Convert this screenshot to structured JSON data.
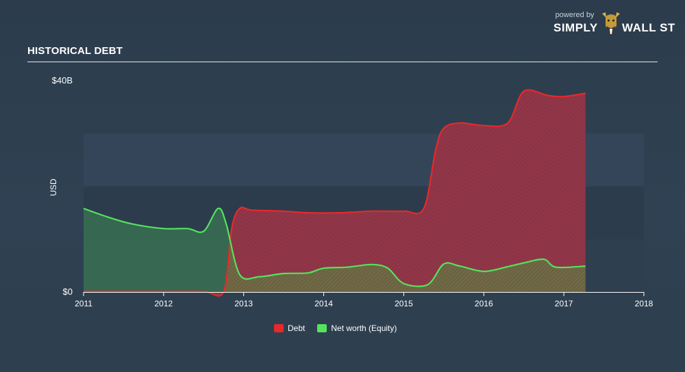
{
  "header": {
    "title": "HISTORICAL DEBT"
  },
  "brand": {
    "powered": "powered by",
    "left": "SIMPLY",
    "right": "WALL ST"
  },
  "colors": {
    "debt": "#e8282b",
    "equity": "#54e35d",
    "background": "#2f4152"
  },
  "chart_data": {
    "type": "area",
    "title": "HISTORICAL DEBT",
    "ylabel": "USD",
    "xlabel": "",
    "xlim": [
      2011,
      2018
    ],
    "ylim": [
      0,
      40
    ],
    "y_unit": "billion USD",
    "y_ticks": [
      {
        "value": 0,
        "label": "$0"
      },
      {
        "value": 40,
        "label": "$40B"
      }
    ],
    "x_ticks": [
      "2011",
      "2012",
      "2013",
      "2014",
      "2015",
      "2016",
      "2017",
      "2018"
    ],
    "legend_position": "bottom-center",
    "series": [
      {
        "name": "Debt",
        "color": "#e8282b",
        "points": [
          [
            2011.0,
            0.1
          ],
          [
            2011.5,
            0.1
          ],
          [
            2012.0,
            0.1
          ],
          [
            2012.5,
            0.1
          ],
          [
            2012.75,
            0.1
          ],
          [
            2012.85,
            12.0
          ],
          [
            2012.95,
            15.8
          ],
          [
            2013.1,
            15.5
          ],
          [
            2013.5,
            15.3
          ],
          [
            2013.8,
            15.0
          ],
          [
            2014.2,
            15.0
          ],
          [
            2014.6,
            15.3
          ],
          [
            2015.0,
            15.3
          ],
          [
            2015.25,
            15.8
          ],
          [
            2015.4,
            27.0
          ],
          [
            2015.5,
            31.0
          ],
          [
            2015.7,
            32.0
          ],
          [
            2016.0,
            31.5
          ],
          [
            2016.3,
            32.0
          ],
          [
            2016.5,
            38.0
          ],
          [
            2016.8,
            37.2
          ],
          [
            2017.0,
            37.0
          ],
          [
            2017.27,
            37.6
          ]
        ]
      },
      {
        "name": "Net worth (Equity)",
        "color": "#54e35d",
        "points": [
          [
            2011.0,
            15.8
          ],
          [
            2011.3,
            14.2
          ],
          [
            2011.6,
            12.9
          ],
          [
            2012.0,
            12.0
          ],
          [
            2012.3,
            12.0
          ],
          [
            2012.5,
            11.5
          ],
          [
            2012.68,
            15.8
          ],
          [
            2012.78,
            13.0
          ],
          [
            2012.95,
            3.3
          ],
          [
            2013.2,
            2.9
          ],
          [
            2013.5,
            3.5
          ],
          [
            2013.8,
            3.6
          ],
          [
            2014.0,
            4.5
          ],
          [
            2014.3,
            4.7
          ],
          [
            2014.6,
            5.2
          ],
          [
            2014.8,
            4.5
          ],
          [
            2015.0,
            1.6
          ],
          [
            2015.3,
            1.4
          ],
          [
            2015.5,
            5.3
          ],
          [
            2015.7,
            4.9
          ],
          [
            2016.0,
            3.9
          ],
          [
            2016.3,
            4.8
          ],
          [
            2016.5,
            5.5
          ],
          [
            2016.75,
            6.2
          ],
          [
            2016.9,
            4.7
          ],
          [
            2017.27,
            4.9
          ]
        ]
      }
    ]
  }
}
